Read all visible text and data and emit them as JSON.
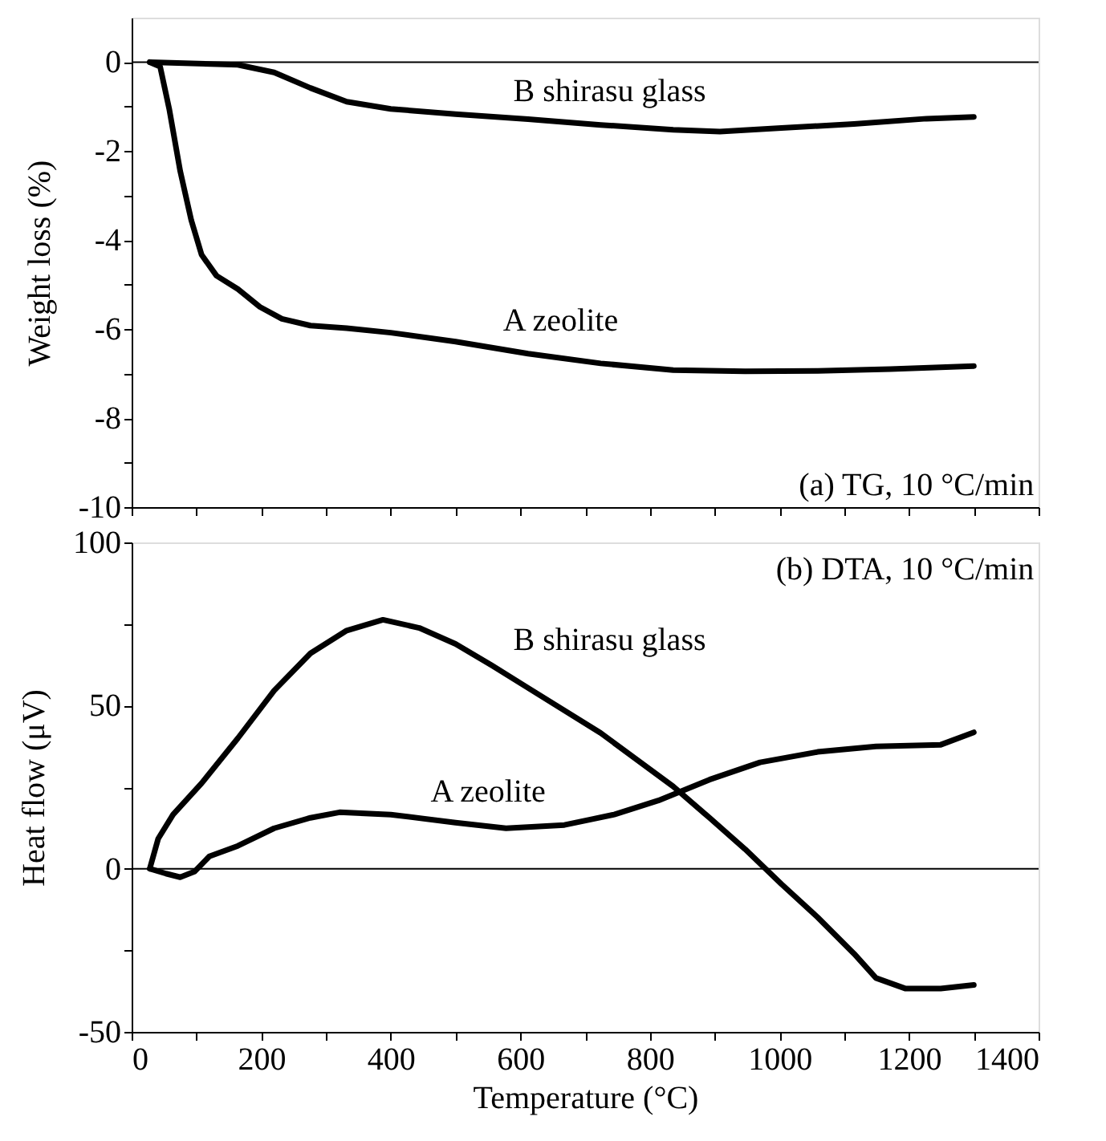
{
  "chart_data": [
    {
      "type": "line",
      "ylabel": "Weight loss (%)",
      "xlim": [
        0,
        1400
      ],
      "xticks": [
        0,
        {
          "value": 100,
          "label": null
        },
        200,
        {
          "value": 300,
          "label": null
        },
        400,
        {
          "value": 500,
          "label": null
        },
        600,
        {
          "value": 700,
          "label": null
        },
        800,
        {
          "value": 900,
          "label": null
        },
        1000,
        {
          "value": 1100,
          "label": null
        },
        1200,
        {
          "value": 1300,
          "label": null
        },
        1400
      ],
      "ylim": [
        -10,
        1
      ],
      "yticks": [
        -10,
        {
          "value": -9,
          "label": null
        },
        -8,
        {
          "value": -7,
          "label": null
        },
        -6,
        {
          "value": -5,
          "label": null
        },
        -4,
        {
          "value": -3,
          "label": null
        },
        -2,
        {
          "value": -1,
          "label": null
        },
        0
      ],
      "tick_labels": "y",
      "grid": false,
      "legend": false,
      "line_style": "solid",
      "marker": "none",
      "series": [
        {
          "color": "#000000",
          "x": [
            28,
            164,
            220,
            276,
            332,
            400,
            500,
            612,
            724,
            836,
            908,
            1003,
            1115,
            1227,
            1300
          ],
          "values": [
            0,
            -0.06,
            -0.23,
            -0.58,
            -0.89,
            -1.05,
            -1.17,
            -1.28,
            -1.41,
            -1.52,
            -1.56,
            -1.48,
            -1.39,
            -1.27,
            -1.23
          ]
        },
        {
          "color": "#000000",
          "x": [
            28,
            44,
            58,
            75,
            92,
            108,
            131,
            164,
            198,
            232,
            276,
            332,
            400,
            500,
            612,
            724,
            836,
            947,
            1059,
            1171,
            1300
          ],
          "values": [
            0,
            -0.1,
            -1.05,
            -2.45,
            -3.55,
            -4.33,
            -4.8,
            -5.1,
            -5.5,
            -5.77,
            -5.92,
            -5.98,
            -6.08,
            -6.28,
            -6.55,
            -6.77,
            -6.92,
            -6.95,
            -6.94,
            -6.9,
            -6.83
          ]
        }
      ],
      "ref_lines": [
        {
          "axis": "y",
          "value": 0,
          "label": null,
          "color": "#000000"
        }
      ],
      "annotations": [
        "B shirasu glass",
        "A zeolite",
        "(a) TG, 10 °C/min"
      ]
    },
    {
      "type": "line",
      "xlabel": "Temperature (°C)",
      "ylabel": "Heat flow (μV)",
      "xlim": [
        0,
        1400
      ],
      "xticks": [
        0,
        {
          "value": 100,
          "label": null
        },
        200,
        {
          "value": 300,
          "label": null
        },
        400,
        {
          "value": 500,
          "label": null
        },
        600,
        {
          "value": 700,
          "label": null
        },
        800,
        {
          "value": 900,
          "label": null
        },
        1000,
        {
          "value": 1100,
          "label": null
        },
        1200,
        {
          "value": 1300,
          "label": null
        },
        1400
      ],
      "ylim": [
        -50,
        100
      ],
      "yticks": [
        -50,
        {
          "value": -25,
          "label": null
        },
        0,
        {
          "value": 25,
          "label": null
        },
        50,
        {
          "value": 75,
          "label": null
        },
        100
      ],
      "grid": false,
      "legend": false,
      "line_style": "solid",
      "marker": "none",
      "series": [
        {
          "color": "#000000",
          "x": [
            28,
            41,
            64,
            108,
            164,
            220,
            276,
            332,
            388,
            444,
            500,
            556,
            612,
            724,
            836,
            892,
            947,
            1003,
            1059,
            1115,
            1149,
            1194,
            1249,
            1300
          ],
          "values": [
            0,
            9.2,
            16.6,
            26.2,
            40,
            54.6,
            66,
            73,
            76.3,
            73.8,
            68.9,
            62.3,
            55.4,
            41.6,
            25.2,
            15.6,
            6,
            -4.7,
            -14.9,
            -26,
            -33.5,
            -36.7,
            -36.7,
            -35.6
          ]
        },
        {
          "color": "#000000",
          "x": [
            28,
            53,
            75,
            97,
            120,
            164,
            220,
            276,
            321,
            400,
            500,
            578,
            668,
            745,
            813,
            892,
            970,
            1059,
            1149,
            1249,
            1300
          ],
          "values": [
            0,
            -1.5,
            -2.6,
            -0.9,
            3.8,
            7,
            12.4,
            15.6,
            17.3,
            16.6,
            14.1,
            12.4,
            13.4,
            16.6,
            20.9,
            27.3,
            32.6,
            35.8,
            37.5,
            38,
            41.8
          ]
        }
      ],
      "ref_lines": [
        {
          "axis": "y",
          "value": 0,
          "label": null,
          "color": "#000000"
        }
      ],
      "annotations": [
        "B shirasu glass",
        "A zeolite",
        "(b) DTA, 10 °C/min"
      ]
    }
  ]
}
